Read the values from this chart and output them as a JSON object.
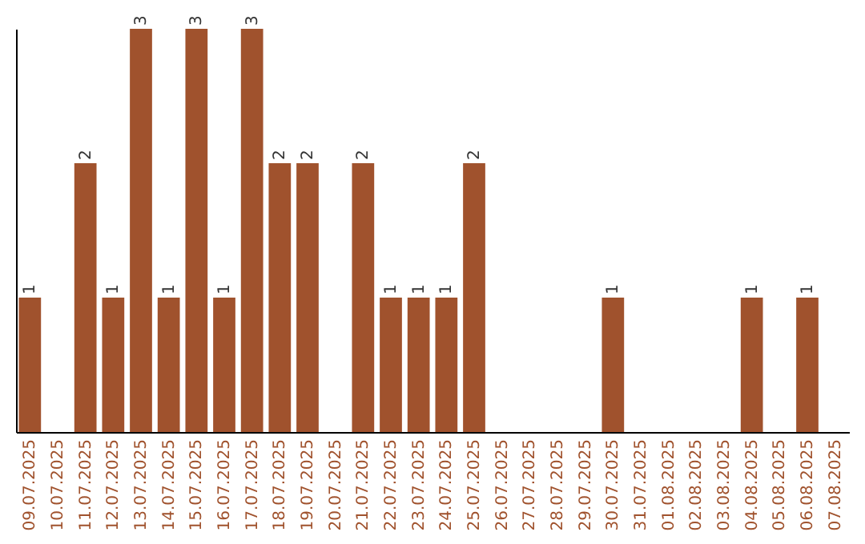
{
  "chart_data": {
    "type": "bar",
    "categories": [
      "09.07.2025",
      "10.07.2025",
      "11.07.2025",
      "12.07.2025",
      "13.07.2025",
      "14.07.2025",
      "15.07.2025",
      "16.07.2025",
      "17.07.2025",
      "18.07.2025",
      "19.07.2025",
      "20.07.2025",
      "21.07.2025",
      "22.07.2025",
      "23.07.2025",
      "24.07.2025",
      "25.07.2025",
      "26.07.2025",
      "27.07.2025",
      "28.07.2025",
      "29.07.2025",
      "30.07.2025",
      "31.07.2025",
      "01.08.2025",
      "02.08.2025",
      "03.08.2025",
      "04.08.2025",
      "05.08.2025",
      "06.08.2025",
      "07.08.2025"
    ],
    "values": [
      1,
      0,
      2,
      1,
      3,
      1,
      3,
      1,
      3,
      2,
      2,
      0,
      2,
      1,
      1,
      1,
      2,
      0,
      0,
      0,
      0,
      1,
      0,
      0,
      0,
      0,
      1,
      0,
      1,
      0
    ],
    "value_labels": [
      "1",
      null,
      "2",
      "1",
      "3",
      "1",
      "3",
      "1",
      "3",
      "2",
      "2",
      null,
      "2",
      "1",
      "1",
      "1",
      "2",
      null,
      null,
      null,
      null,
      "1",
      null,
      null,
      null,
      null,
      "1",
      null,
      "1",
      null
    ],
    "color": "#a0522d",
    "grid": false,
    "tick_labels": "x"
  }
}
